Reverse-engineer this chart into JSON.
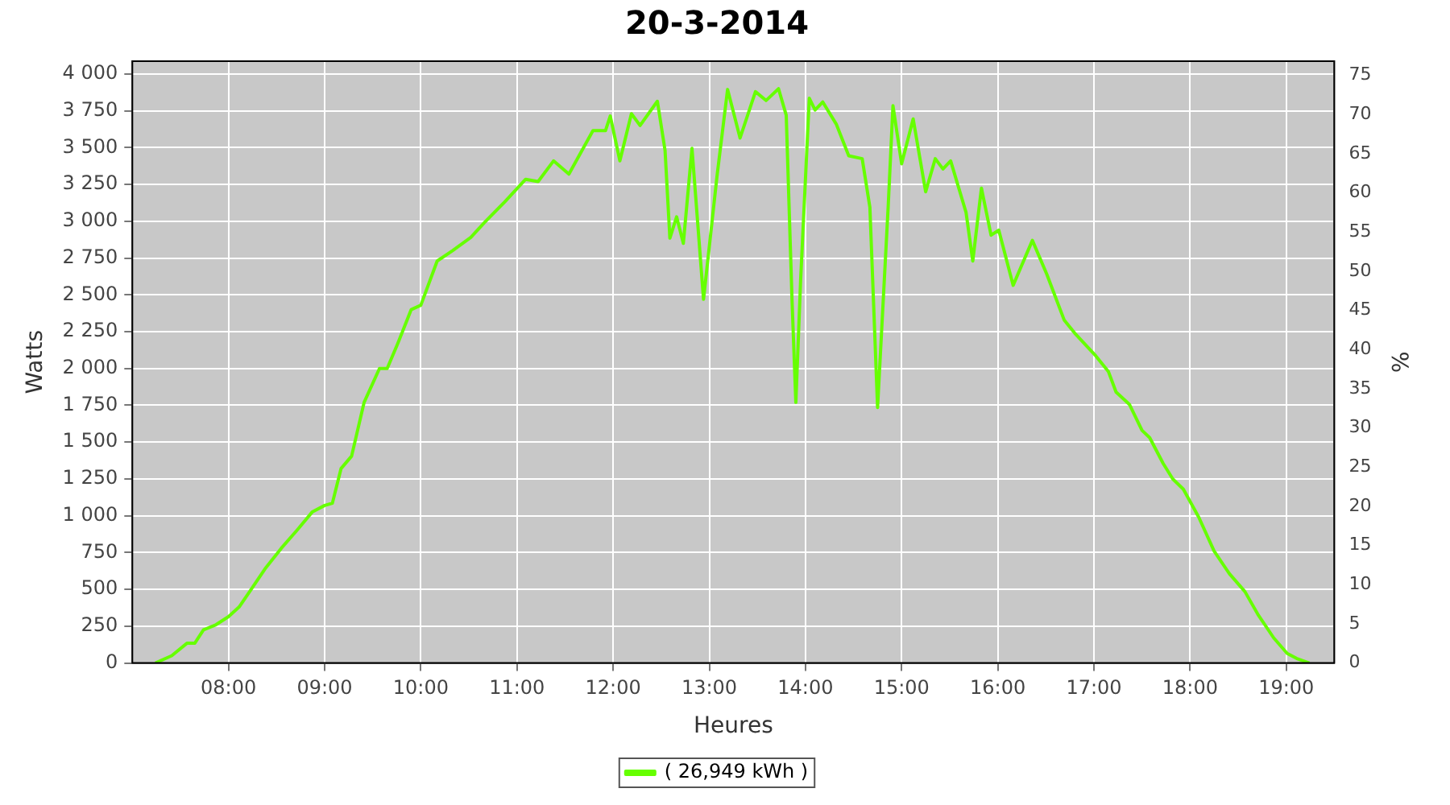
{
  "chart_data": {
    "type": "line",
    "title": "20-3-2014",
    "xlabel": "Heures",
    "ylabel": "Watts",
    "y2label": "%",
    "x": [
      7.24,
      7.41,
      7.57,
      7.65,
      7.74,
      7.87,
      8.0,
      8.11,
      8.22,
      8.38,
      8.55,
      8.71,
      8.87,
      9.0,
      9.08,
      9.17,
      9.28,
      9.41,
      9.57,
      9.65,
      9.76,
      9.9,
      10.0,
      10.17,
      10.33,
      10.52,
      10.66,
      10.87,
      11.09,
      11.22,
      11.38,
      11.54,
      11.79,
      11.92,
      11.97,
      12.07,
      12.19,
      12.28,
      12.46,
      12.54,
      12.59,
      12.66,
      12.73,
      12.82,
      12.94,
      13.08,
      13.19,
      13.32,
      13.48,
      13.59,
      13.72,
      13.8,
      13.86,
      13.9,
      13.95,
      14.04,
      14.1,
      14.18,
      14.32,
      14.45,
      14.59,
      14.67,
      14.75,
      14.86,
      14.91,
      15.0,
      15.12,
      15.25,
      15.35,
      15.43,
      15.51,
      15.67,
      15.74,
      15.83,
      15.93,
      16.01,
      16.16,
      16.36,
      16.51,
      16.69,
      16.8,
      17.02,
      17.15,
      17.23,
      17.37,
      17.5,
      17.58,
      17.72,
      17.82,
      17.93,
      18.09,
      18.25,
      18.41,
      18.57,
      18.71,
      18.87,
      19.01,
      19.11,
      19.24
    ],
    "series": [
      {
        "name": "( 26,949 kWh )",
        "color": "#66ff00",
        "values": [
          0,
          50,
          135,
          135,
          225,
          260,
          315,
          380,
          485,
          640,
          780,
          900,
          1025,
          1070,
          1085,
          1320,
          1405,
          1770,
          2000,
          2000,
          2170,
          2400,
          2430,
          2730,
          2800,
          2890,
          2990,
          3130,
          3285,
          3270,
          3410,
          3320,
          3615,
          3615,
          3715,
          3410,
          3730,
          3650,
          3815,
          3480,
          2885,
          3030,
          2850,
          3495,
          2470,
          3305,
          3895,
          3565,
          3880,
          3820,
          3900,
          3720,
          2470,
          1770,
          2605,
          3835,
          3755,
          3810,
          3660,
          3445,
          3425,
          3095,
          1735,
          3095,
          3785,
          3390,
          3695,
          3200,
          3425,
          3355,
          3410,
          3060,
          2730,
          3225,
          2905,
          2940,
          2565,
          2870,
          2640,
          2330,
          2240,
          2085,
          1980,
          1840,
          1755,
          1580,
          1530,
          1355,
          1250,
          1180,
          990,
          760,
          605,
          485,
          325,
          170,
          65,
          30,
          0
        ]
      }
    ],
    "xlim": [
      7.0,
      19.5
    ],
    "xticks": [
      {
        "value": 8,
        "label": "08:00"
      },
      {
        "value": 9,
        "label": "09:00"
      },
      {
        "value": 10,
        "label": "10:00"
      },
      {
        "value": 11,
        "label": "11:00"
      },
      {
        "value": 12,
        "label": "12:00"
      },
      {
        "value": 13,
        "label": "13:00"
      },
      {
        "value": 14,
        "label": "14:00"
      },
      {
        "value": 15,
        "label": "15:00"
      },
      {
        "value": 16,
        "label": "16:00"
      },
      {
        "value": 17,
        "label": "17:00"
      },
      {
        "value": 18,
        "label": "18:00"
      },
      {
        "value": 19,
        "label": "19:00"
      }
    ],
    "ylim": [
      0,
      4087
    ],
    "yticks": [
      0,
      250,
      500,
      750,
      {
        "value": 1000,
        "label": "1 000"
      },
      {
        "value": 1250,
        "label": "1 250"
      },
      {
        "value": 1500,
        "label": "1 500"
      },
      {
        "value": 1750,
        "label": "1 750"
      },
      {
        "value": 2000,
        "label": "2 000"
      },
      {
        "value": 2250,
        "label": "2 250"
      },
      {
        "value": 2500,
        "label": "2 500"
      },
      {
        "value": 2750,
        "label": "2 750"
      },
      {
        "value": 3000,
        "label": "3 000"
      },
      {
        "value": 3250,
        "label": "3 250"
      },
      {
        "value": 3500,
        "label": "3 500"
      },
      {
        "value": 3750,
        "label": "3 750"
      },
      {
        "value": 4000,
        "label": "4 000"
      }
    ],
    "y2lim": [
      0,
      76.8
    ],
    "y2ticks": [
      0,
      5,
      10,
      15,
      20,
      25,
      30,
      35,
      40,
      45,
      50,
      55,
      60,
      65,
      70,
      75
    ],
    "grid": true,
    "legend": "bottom",
    "marker": "none",
    "line_style": "solid"
  }
}
